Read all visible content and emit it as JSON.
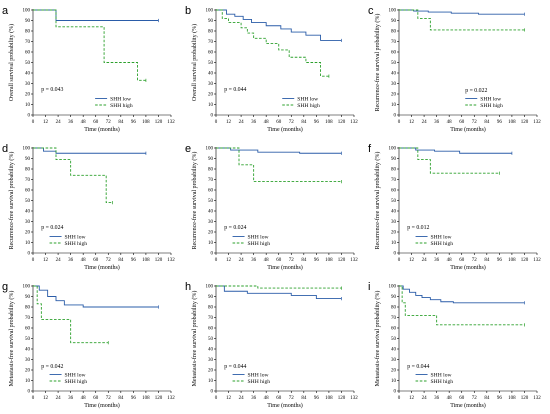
{
  "chart_data": [
    {
      "panel": "a",
      "type": "line",
      "ylabel": "Overall survival probability (%)",
      "xlabel": "Time (months)",
      "xlim": [
        0,
        132
      ],
      "ylim": [
        0,
        100
      ],
      "xticks": [
        0,
        12,
        24,
        36,
        48,
        60,
        72,
        84,
        96,
        108,
        120,
        132
      ],
      "yticks": [
        0,
        10,
        20,
        30,
        40,
        50,
        60,
        70,
        80,
        90,
        100
      ],
      "p_value": "p = 0.043",
      "series": [
        {
          "name": "SHH low",
          "x": [
            0,
            22,
            22,
            120
          ],
          "y": [
            100,
            100,
            90,
            90
          ]
        },
        {
          "name": "SHH high",
          "x": [
            0,
            22,
            22,
            68,
            68,
            100,
            100,
            108
          ],
          "y": [
            100,
            100,
            84,
            84,
            50,
            50,
            33,
            33
          ]
        }
      ]
    },
    {
      "panel": "b",
      "type": "line",
      "ylabel": "Overall survival probability (%)",
      "xlabel": "Time (months)",
      "xlim": [
        0,
        132
      ],
      "ylim": [
        0,
        100
      ],
      "xticks": [
        0,
        12,
        24,
        36,
        48,
        60,
        72,
        84,
        96,
        108,
        120,
        132
      ],
      "yticks": [
        0,
        10,
        20,
        30,
        40,
        50,
        60,
        70,
        80,
        90,
        100
      ],
      "p_value": "p = 0.044",
      "series": [
        {
          "name": "SHH low",
          "x": [
            0,
            10,
            10,
            18,
            18,
            26,
            26,
            34,
            34,
            48,
            48,
            62,
            62,
            72,
            72,
            86,
            86,
            100,
            100,
            120
          ],
          "y": [
            100,
            100,
            96,
            96,
            94,
            94,
            91,
            91,
            88,
            88,
            85,
            85,
            82,
            82,
            79,
            79,
            76,
            76,
            71,
            71
          ]
        },
        {
          "name": "SHH high",
          "x": [
            0,
            6,
            6,
            12,
            12,
            24,
            24,
            30,
            30,
            36,
            36,
            48,
            48,
            60,
            60,
            70,
            70,
            86,
            86,
            100,
            100,
            108
          ],
          "y": [
            100,
            100,
            92,
            92,
            88,
            88,
            83,
            83,
            78,
            78,
            73,
            73,
            68,
            68,
            62,
            62,
            55,
            55,
            50,
            50,
            37,
            37
          ]
        }
      ]
    },
    {
      "panel": "c",
      "type": "line",
      "ylabel": "Recurrence-free survival probability (%)",
      "xlabel": "Time (months)",
      "xlim": [
        0,
        132
      ],
      "ylim": [
        0,
        100
      ],
      "xticks": [
        0,
        12,
        24,
        36,
        48,
        60,
        72,
        84,
        96,
        108,
        120,
        132
      ],
      "yticks": [
        0,
        10,
        20,
        30,
        40,
        50,
        60,
        70,
        80,
        90,
        100
      ],
      "p_value": "p = 0.022",
      "series": [
        {
          "name": "SHH low",
          "x": [
            0,
            14,
            14,
            28,
            28,
            50,
            50,
            76,
            76,
            120
          ],
          "y": [
            100,
            100,
            99,
            99,
            98,
            98,
            97,
            97,
            96,
            96
          ]
        },
        {
          "name": "SHH high",
          "x": [
            0,
            18,
            18,
            30,
            30,
            120
          ],
          "y": [
            100,
            100,
            92,
            92,
            81,
            81
          ]
        }
      ]
    },
    {
      "panel": "d",
      "type": "line",
      "ylabel": "Recurrence-free survival probability (%)",
      "xlabel": "Time (months)",
      "xlim": [
        0,
        132
      ],
      "ylim": [
        0,
        100
      ],
      "xticks": [
        0,
        12,
        24,
        36,
        48,
        60,
        72,
        84,
        96,
        108,
        120,
        132
      ],
      "yticks": [
        0,
        10,
        20,
        30,
        40,
        50,
        60,
        70,
        80,
        90,
        100
      ],
      "p_value": "p = 0.024",
      "series": [
        {
          "name": "SHH low",
          "x": [
            0,
            10,
            10,
            22,
            22,
            108
          ],
          "y": [
            100,
            100,
            97,
            97,
            95,
            95
          ]
        },
        {
          "name": "SHH high",
          "x": [
            0,
            22,
            22,
            36,
            36,
            70,
            70,
            76
          ],
          "y": [
            100,
            100,
            89,
            89,
            74,
            74,
            48,
            48
          ]
        }
      ]
    },
    {
      "panel": "e",
      "type": "line",
      "ylabel": "Recurrence-free survival probability (%)",
      "xlabel": "Time (months)",
      "xlim": [
        0,
        132
      ],
      "ylim": [
        0,
        100
      ],
      "xticks": [
        0,
        12,
        24,
        36,
        48,
        60,
        72,
        84,
        96,
        108,
        120,
        132
      ],
      "yticks": [
        0,
        10,
        20,
        30,
        40,
        50,
        60,
        70,
        80,
        90,
        100
      ],
      "p_value": "p = 0.024",
      "series": [
        {
          "name": "SHH low",
          "x": [
            0,
            14,
            14,
            40,
            40,
            80,
            80,
            120
          ],
          "y": [
            100,
            100,
            98,
            98,
            96,
            96,
            95,
            95
          ]
        },
        {
          "name": "SHH high",
          "x": [
            0,
            22,
            22,
            36,
            36,
            120
          ],
          "y": [
            100,
            100,
            84,
            84,
            68,
            68
          ]
        }
      ]
    },
    {
      "panel": "f",
      "type": "line",
      "ylabel": "Recurrence-free survival probability (%)",
      "xlabel": "Time (months)",
      "xlim": [
        0,
        132
      ],
      "ylim": [
        0,
        100
      ],
      "xticks": [
        0,
        12,
        24,
        36,
        48,
        60,
        72,
        84,
        96,
        108,
        120,
        132
      ],
      "yticks": [
        0,
        10,
        20,
        30,
        40,
        50,
        60,
        70,
        80,
        90,
        100
      ],
      "p_value": "p = 0.012",
      "series": [
        {
          "name": "SHH low",
          "x": [
            0,
            16,
            16,
            34,
            34,
            58,
            58,
            108
          ],
          "y": [
            100,
            100,
            98,
            98,
            97,
            97,
            95,
            95
          ]
        },
        {
          "name": "SHH high",
          "x": [
            0,
            18,
            18,
            30,
            30,
            96
          ],
          "y": [
            100,
            100,
            89,
            89,
            76,
            76
          ]
        }
      ]
    },
    {
      "panel": "g",
      "type": "line",
      "ylabel": "Metastasis-free survival probability (%)",
      "xlabel": "Time (months)",
      "xlim": [
        0,
        132
      ],
      "ylim": [
        0,
        100
      ],
      "xticks": [
        0,
        12,
        24,
        36,
        48,
        60,
        72,
        84,
        96,
        108,
        120,
        132
      ],
      "yticks": [
        0,
        10,
        20,
        30,
        40,
        50,
        60,
        70,
        80,
        90,
        100
      ],
      "p_value": "p = 0.042",
      "series": [
        {
          "name": "SHH low",
          "x": [
            0,
            6,
            6,
            14,
            14,
            22,
            22,
            30,
            30,
            48,
            48,
            120
          ],
          "y": [
            100,
            100,
            96,
            96,
            90,
            90,
            86,
            86,
            82,
            82,
            80,
            80
          ]
        },
        {
          "name": "SHH high",
          "x": [
            0,
            4,
            4,
            8,
            8,
            36,
            36,
            72
          ],
          "y": [
            100,
            100,
            83,
            83,
            68,
            68,
            46,
            46
          ]
        }
      ]
    },
    {
      "panel": "h",
      "type": "line",
      "ylabel": "Metastasis-free survival probability (%)",
      "xlabel": "Time (months)",
      "xlim": [
        0,
        132
      ],
      "ylim": [
        0,
        100
      ],
      "xticks": [
        0,
        12,
        24,
        36,
        48,
        60,
        72,
        84,
        96,
        108,
        120,
        132
      ],
      "yticks": [
        0,
        10,
        20,
        30,
        40,
        50,
        60,
        70,
        80,
        90,
        100
      ],
      "p_value": "p = 0.044",
      "series": [
        {
          "name": "SHH low",
          "x": [
            0,
            8,
            8,
            30,
            30,
            72,
            72,
            96,
            96,
            120
          ],
          "y": [
            100,
            100,
            95,
            95,
            93,
            93,
            91,
            91,
            88,
            88
          ]
        },
        {
          "name": "SHH high",
          "x": [
            0,
            40,
            40,
            120
          ],
          "y": [
            100,
            100,
            98,
            98
          ]
        }
      ]
    },
    {
      "panel": "i",
      "type": "line",
      "ylabel": "Metastasis-free survival probability (%)",
      "xlabel": "Time (months)",
      "xlim": [
        0,
        132
      ],
      "ylim": [
        0,
        100
      ],
      "xticks": [
        0,
        12,
        24,
        36,
        48,
        60,
        72,
        84,
        96,
        108,
        120,
        132
      ],
      "yticks": [
        0,
        10,
        20,
        30,
        40,
        50,
        60,
        70,
        80,
        90,
        100
      ],
      "p_value": "p = 0.044",
      "series": [
        {
          "name": "SHH low",
          "x": [
            0,
            4,
            4,
            10,
            10,
            16,
            16,
            22,
            22,
            30,
            30,
            40,
            40,
            52,
            52,
            120
          ],
          "y": [
            100,
            100,
            97,
            97,
            94,
            94,
            91,
            91,
            89,
            89,
            87,
            87,
            85,
            85,
            84,
            84
          ]
        },
        {
          "name": "SHH high",
          "x": [
            0,
            3,
            3,
            6,
            6,
            36,
            36,
            120
          ],
          "y": [
            100,
            100,
            84,
            84,
            72,
            72,
            63,
            63
          ]
        }
      ]
    }
  ],
  "colors": {
    "low": "#2a5ca8",
    "high": "#2ca02c"
  }
}
